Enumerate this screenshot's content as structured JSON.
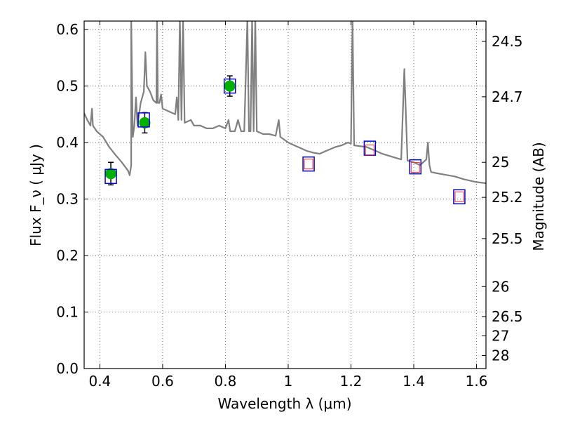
{
  "chart_data": {
    "type": "scatter",
    "xlabel": "Wavelength  λ (μm)",
    "ylabel": "Flux  F_ν  ( μJy )",
    "ylabel_right": "Magnitude (AB)",
    "xlim": [
      0.35,
      1.63
    ],
    "ylim": [
      0.0,
      0.615
    ],
    "x_ticks": [
      0.4,
      0.6,
      0.8,
      1.0,
      1.2,
      1.4,
      1.6
    ],
    "x_tick_labels": [
      "0.4",
      "0.6",
      "0.8",
      "1",
      "1.2",
      "1.4",
      "1.6"
    ],
    "y_ticks": [
      0.0,
      0.1,
      0.2,
      0.3,
      0.4,
      0.5,
      0.6
    ],
    "y_tick_labels": [
      "0.0",
      "0.1",
      "0.2",
      "0.3",
      "0.4",
      "0.5",
      "0.6"
    ],
    "right_ticks": [
      {
        "label": "24.5",
        "flux": 0.579
      },
      {
        "label": "24.7",
        "flux": 0.481
      },
      {
        "label": "25",
        "flux": 0.365
      },
      {
        "label": "25.2",
        "flux": 0.303
      },
      {
        "label": "25.5",
        "flux": 0.23
      },
      {
        "label": "26",
        "flux": 0.145
      },
      {
        "label": "26.5",
        "flux": 0.092
      },
      {
        "label": "27",
        "flux": 0.058
      },
      {
        "label": "28",
        "flux": 0.023
      }
    ],
    "grid": true,
    "colors": {
      "model": "#808080",
      "observed": "#00b000",
      "model_box": "#0000cc",
      "predicted": "#ff3333",
      "error_bar": "#000000"
    },
    "series": [
      {
        "kind": "model_spectrum",
        "points": [
          [
            0.35,
            0.452
          ],
          [
            0.36,
            0.44
          ],
          [
            0.37,
            0.43
          ],
          [
            0.375,
            0.46
          ],
          [
            0.378,
            0.43
          ],
          [
            0.39,
            0.42
          ],
          [
            0.41,
            0.41
          ],
          [
            0.43,
            0.392
          ],
          [
            0.45,
            0.378
          ],
          [
            0.47,
            0.365
          ],
          [
            0.49,
            0.35
          ],
          [
            0.495,
            0.342
          ],
          [
            0.5,
            0.36
          ],
          [
            0.5,
            0.62
          ],
          [
            0.505,
            0.41
          ],
          [
            0.51,
            0.43
          ],
          [
            0.515,
            0.48
          ],
          [
            0.52,
            0.43
          ],
          [
            0.53,
            0.47
          ],
          [
            0.54,
            0.49
          ],
          [
            0.545,
            0.56
          ],
          [
            0.55,
            0.5
          ],
          [
            0.56,
            0.49
          ],
          [
            0.57,
            0.475
          ],
          [
            0.58,
            0.47
          ],
          [
            0.582,
            0.62
          ],
          [
            0.585,
            0.47
          ],
          [
            0.59,
            0.47
          ],
          [
            0.595,
            0.485
          ],
          [
            0.6,
            0.46
          ],
          [
            0.62,
            0.455
          ],
          [
            0.64,
            0.45
          ],
          [
            0.645,
            0.48
          ],
          [
            0.65,
            0.44
          ],
          [
            0.655,
            0.62
          ],
          [
            0.66,
            0.44
          ],
          [
            0.665,
            0.62
          ],
          [
            0.67,
            0.435
          ],
          [
            0.69,
            0.44
          ],
          [
            0.7,
            0.43
          ],
          [
            0.72,
            0.43
          ],
          [
            0.74,
            0.425
          ],
          [
            0.76,
            0.425
          ],
          [
            0.78,
            0.43
          ],
          [
            0.8,
            0.425
          ],
          [
            0.81,
            0.44
          ],
          [
            0.815,
            0.42
          ],
          [
            0.83,
            0.42
          ],
          [
            0.84,
            0.44
          ],
          [
            0.85,
            0.42
          ],
          [
            0.86,
            0.42
          ],
          [
            0.87,
            0.62
          ],
          [
            0.875,
            0.42
          ],
          [
            0.88,
            0.42
          ],
          [
            0.885,
            0.62
          ],
          [
            0.89,
            0.42
          ],
          [
            0.895,
            0.62
          ],
          [
            0.9,
            0.42
          ],
          [
            0.92,
            0.415
          ],
          [
            0.94,
            0.415
          ],
          [
            0.96,
            0.412
          ],
          [
            0.97,
            0.44
          ],
          [
            0.975,
            0.41
          ],
          [
            1.0,
            0.4
          ],
          [
            1.02,
            0.395
          ],
          [
            1.04,
            0.39
          ],
          [
            1.06,
            0.385
          ],
          [
            1.08,
            0.382
          ],
          [
            1.1,
            0.38
          ],
          [
            1.12,
            0.385
          ],
          [
            1.15,
            0.392
          ],
          [
            1.17,
            0.395
          ],
          [
            1.19,
            0.4
          ],
          [
            1.2,
            0.398
          ],
          [
            1.205,
            0.62
          ],
          [
            1.21,
            0.395
          ],
          [
            1.25,
            0.392
          ],
          [
            1.28,
            0.385
          ],
          [
            1.3,
            0.38
          ],
          [
            1.33,
            0.375
          ],
          [
            1.36,
            0.37
          ],
          [
            1.37,
            0.53
          ],
          [
            1.38,
            0.368
          ],
          [
            1.4,
            0.365
          ],
          [
            1.42,
            0.36
          ],
          [
            1.44,
            0.37
          ],
          [
            1.445,
            0.4
          ],
          [
            1.45,
            0.36
          ],
          [
            1.455,
            0.348
          ],
          [
            1.47,
            0.346
          ],
          [
            1.5,
            0.343
          ],
          [
            1.53,
            0.34
          ],
          [
            1.56,
            0.335
          ],
          [
            1.6,
            0.33
          ],
          [
            1.63,
            0.328
          ]
        ]
      },
      {
        "kind": "observed",
        "marker": "circle",
        "points": [
          {
            "x": 0.435,
            "y": 0.345,
            "err": 0.02
          },
          {
            "x": 0.543,
            "y": 0.435,
            "err": 0.018
          },
          {
            "x": 0.814,
            "y": 0.5,
            "err": 0.018
          }
        ]
      },
      {
        "kind": "model_photometry",
        "marker": "square",
        "points": [
          {
            "x": 0.435,
            "y": 0.34
          },
          {
            "x": 0.54,
            "y": 0.44
          },
          {
            "x": 0.814,
            "y": 0.5
          },
          {
            "x": 1.065,
            "y": 0.362
          },
          {
            "x": 1.26,
            "y": 0.39
          },
          {
            "x": 1.405,
            "y": 0.357
          },
          {
            "x": 1.545,
            "y": 0.304
          }
        ]
      },
      {
        "kind": "predicted",
        "marker": "square",
        "points": [
          {
            "x": 1.065,
            "y": 0.362
          },
          {
            "x": 1.26,
            "y": 0.387
          },
          {
            "x": 1.405,
            "y": 0.356
          },
          {
            "x": 1.545,
            "y": 0.304
          }
        ]
      }
    ]
  }
}
